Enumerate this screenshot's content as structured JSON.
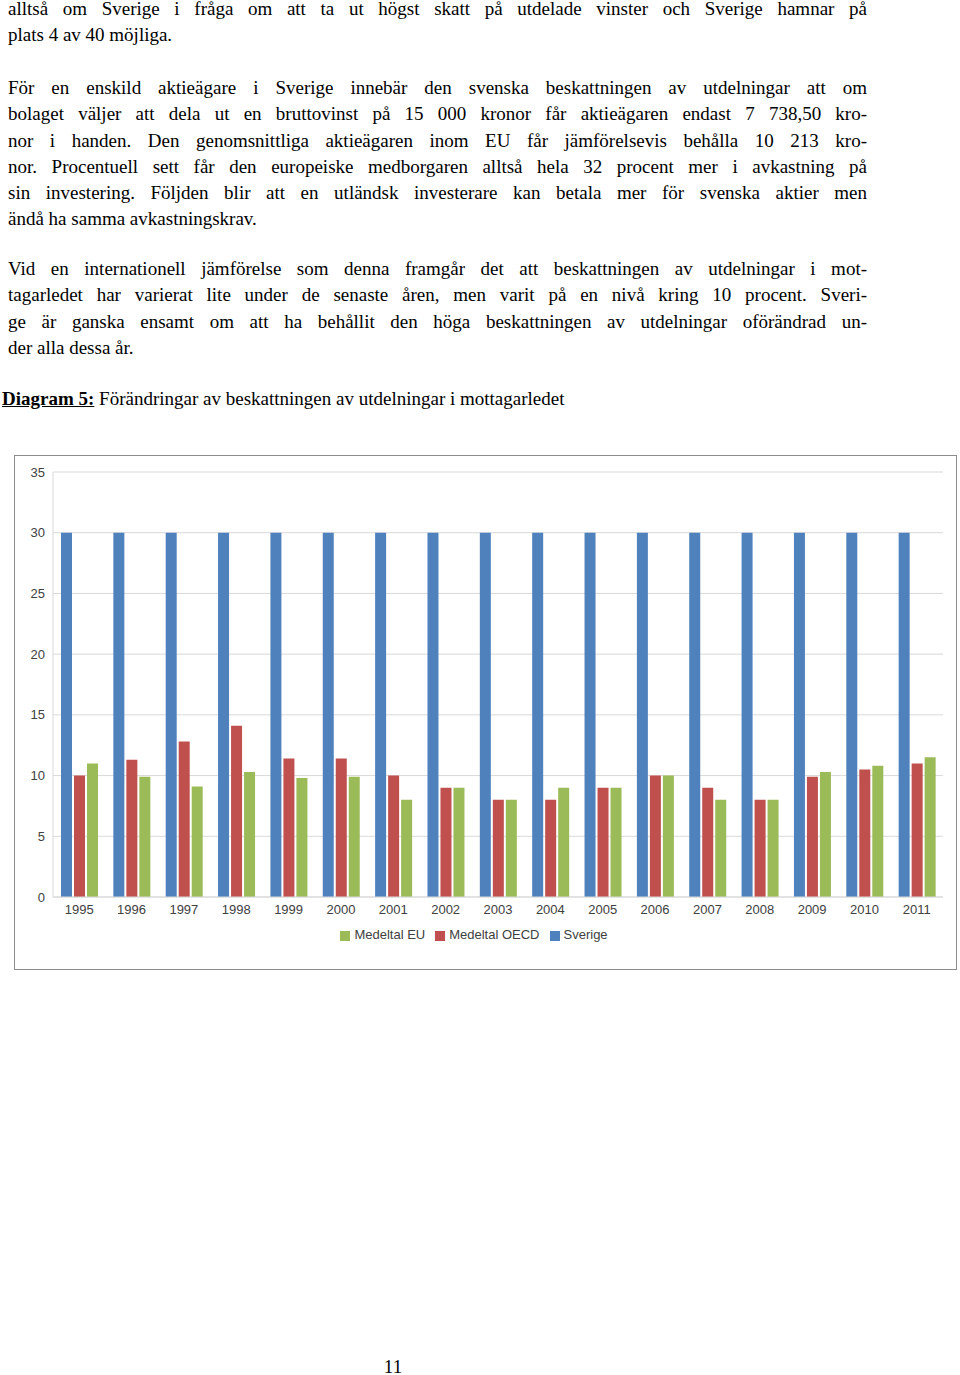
{
  "paragraphs": [
    [
      "alltså om Sverige i fråga om att ta ut högst skatt på utdelade vinster och Sverige hamnar på",
      "plats 4 av 40 möjliga."
    ],
    [
      "För en enskild aktieägare i Sverige innebär den svenska beskattningen av utdelningar att om",
      "bolaget väljer att dela ut en bruttovinst på 15 000 kronor får aktieägaren endast 7 738,50 kro-",
      "nor i handen. Den genomsnittliga aktieägaren inom EU får jämförelsevis behålla 10 213 kro-",
      "nor. Procentuell sett får den europeiske medborgaren alltså hela 32 procent mer i avkastning på",
      "sin investering. Följden blir att en utländsk investerare kan betala mer för svenska aktier men",
      "ändå ha samma avkastningskrav."
    ],
    [
      "Vid en internationell jämförelse som denna framgår det att beskattningen av utdelningar i mot-",
      "tagarledet har varierat lite under de senaste åren, men varit på en nivå kring 10 procent. Sveri-",
      "ge är ganska ensamt om att ha behållit den höga beskattningen av utdelningar oförändrad un-",
      "der alla dessa år."
    ]
  ],
  "caption": {
    "label": "Diagram 5:",
    "text": "Förändringar av beskattningen av utdelningar i mottagarledet"
  },
  "chart_data": {
    "type": "bar",
    "categories": [
      "1995",
      "1996",
      "1997",
      "1998",
      "1999",
      "2000",
      "2001",
      "2002",
      "2003",
      "2004",
      "2005",
      "2006",
      "2007",
      "2008",
      "2009",
      "2010",
      "2011"
    ],
    "series": [
      {
        "name": "Sverige",
        "color": "#4f81bd",
        "values": [
          30,
          30,
          30,
          30,
          30,
          30,
          30,
          30,
          30,
          30,
          30,
          30,
          30,
          30,
          30,
          30,
          30
        ]
      },
      {
        "name": "Medeltal OECD",
        "color": "#c0504d",
        "values": [
          10,
          11.3,
          12.8,
          14.1,
          11.4,
          11.4,
          10,
          9,
          8,
          8,
          9,
          10,
          9,
          8,
          9.9,
          10.5,
          11
        ]
      },
      {
        "name": "Medeltal EU",
        "color": "#9bbb59",
        "values": [
          11,
          9.9,
          9.1,
          10.3,
          9.8,
          9.9,
          8,
          9,
          8,
          9,
          9,
          10,
          8,
          8,
          10.3,
          10.8,
          11.5
        ]
      }
    ],
    "ylim": [
      0,
      35
    ],
    "yticks": [
      0,
      5,
      10,
      15,
      20,
      25,
      30,
      35
    ],
    "grid": true,
    "legend": "bottom"
  },
  "page_number": "11"
}
